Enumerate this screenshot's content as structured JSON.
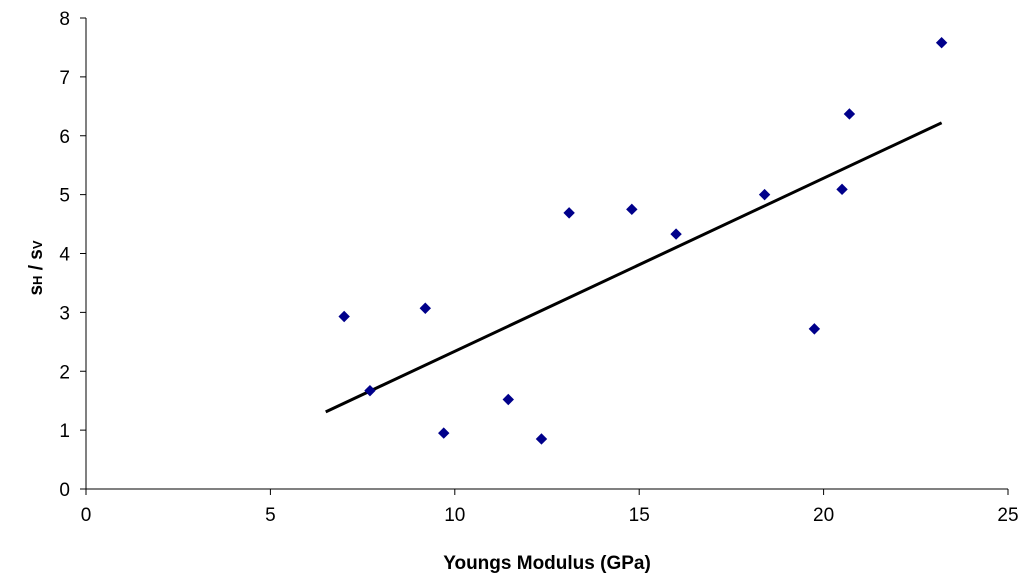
{
  "chart_data": {
    "type": "scatter",
    "xlabel": "Youngs Modulus (GPa)",
    "ylabel": {
      "s1": "s",
      "sub1": "H",
      "slash": " / ",
      "s2": "s",
      "sub2": "V"
    },
    "xlim": [
      0,
      25
    ],
    "ylim": [
      0,
      8
    ],
    "x_ticks": [
      0,
      5,
      10,
      15,
      20,
      25
    ],
    "y_ticks": [
      0,
      1,
      2,
      3,
      4,
      5,
      6,
      7,
      8
    ],
    "grid": false,
    "legend": "none",
    "series": [
      {
        "marker": "diamond",
        "color": "#00008B",
        "points": [
          {
            "x": 7.0,
            "y": 2.93
          },
          {
            "x": 7.7,
            "y": 1.67
          },
          {
            "x": 9.2,
            "y": 3.07
          },
          {
            "x": 9.7,
            "y": 0.95
          },
          {
            "x": 11.45,
            "y": 1.52
          },
          {
            "x": 12.35,
            "y": 0.85
          },
          {
            "x": 13.1,
            "y": 4.69
          },
          {
            "x": 14.8,
            "y": 4.75
          },
          {
            "x": 16.0,
            "y": 4.33
          },
          {
            "x": 18.4,
            "y": 5.0
          },
          {
            "x": 19.75,
            "y": 2.72
          },
          {
            "x": 20.5,
            "y": 5.09
          },
          {
            "x": 20.7,
            "y": 6.37
          },
          {
            "x": 23.2,
            "y": 7.58
          }
        ]
      }
    ],
    "trendline": {
      "type": "linear",
      "color": "#000000",
      "x": [
        6.5,
        23.2
      ],
      "y": [
        1.31,
        6.22
      ]
    }
  }
}
